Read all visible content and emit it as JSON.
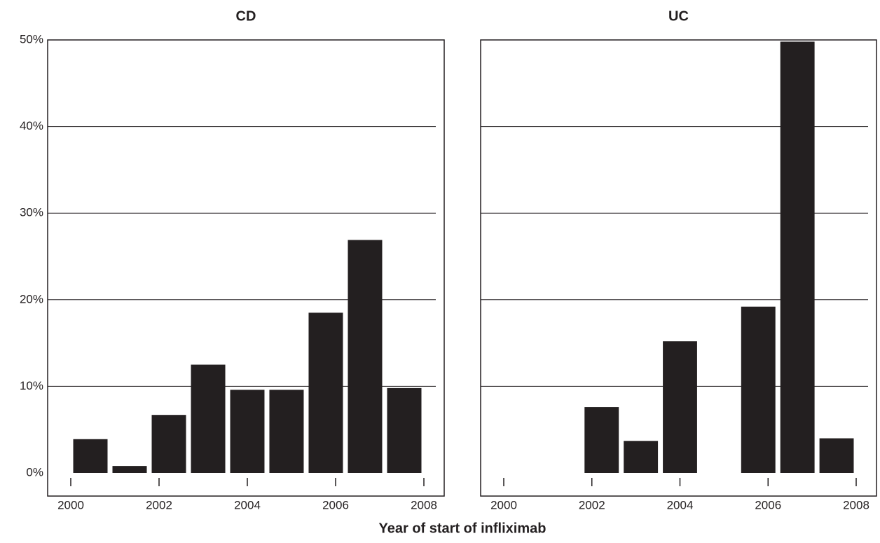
{
  "xlabel": "Year of start of infliximab",
  "chart_data": [
    {
      "type": "histogram",
      "title": "CD",
      "color": "#231f20",
      "bins": [
        2000,
        2000.889,
        2001.778,
        2002.667,
        2003.556,
        2004.444,
        2005.333,
        2006.222,
        2007.111,
        2008
      ],
      "values": [
        3.9,
        0.8,
        6.7,
        12.5,
        9.6,
        9.6,
        18.5,
        26.9,
        9.8
      ],
      "xlim": [
        2000,
        2008
      ],
      "xticks": [
        2000,
        2002,
        2004,
        2006,
        2008
      ],
      "ylim": [
        0,
        50
      ],
      "yticks": [
        {
          "value": 0,
          "label": "0%"
        },
        {
          "value": 10,
          "label": "10%"
        },
        {
          "value": 20,
          "label": "20%"
        },
        {
          "value": 30,
          "label": "30%"
        },
        {
          "value": 40,
          "label": "40%"
        },
        {
          "value": 50,
          "label": "50%"
        }
      ],
      "grid": true,
      "ytick_labels": true
    },
    {
      "type": "histogram",
      "title": "UC",
      "color": "#231f20",
      "bins": [
        2000,
        2000.889,
        2001.778,
        2002.667,
        2003.556,
        2004.444,
        2005.333,
        2006.222,
        2007.111,
        2008
      ],
      "values": [
        0,
        0,
        7.6,
        3.7,
        15.2,
        0,
        19.2,
        49.8,
        4.0
      ],
      "xlim": [
        2000,
        2008
      ],
      "xticks": [
        2000,
        2002,
        2004,
        2006,
        2008
      ],
      "ylim": [
        0,
        50
      ],
      "yticks": [
        0,
        10,
        20,
        30,
        40,
        50
      ],
      "grid": true,
      "ytick_labels": false
    }
  ]
}
